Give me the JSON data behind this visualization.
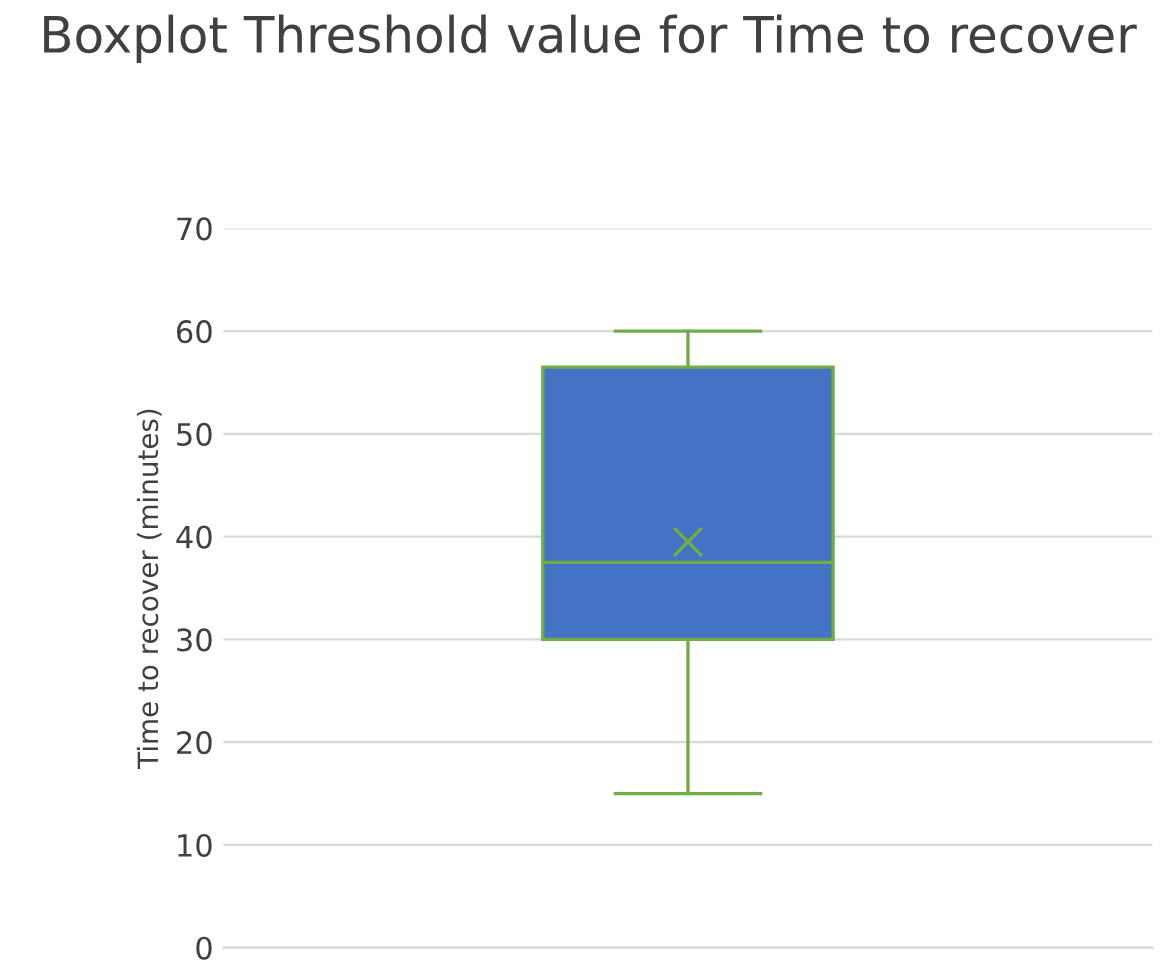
{
  "chart_data": {
    "type": "box",
    "title": "Boxplot Threshold value for Time to recover",
    "ylabel": "Time to recover (minutes)",
    "categories": [
      null
    ],
    "boxes": [
      {
        "low": 15,
        "q1": 30,
        "median": 37.5,
        "q3": 56.5,
        "high": 60,
        "mean": 39.5
      }
    ],
    "color": "#4472c4",
    "ylim": [
      0,
      70
    ],
    "yticks": [
      0,
      10,
      20,
      30,
      40,
      50,
      60,
      70
    ],
    "grid": "y"
  }
}
